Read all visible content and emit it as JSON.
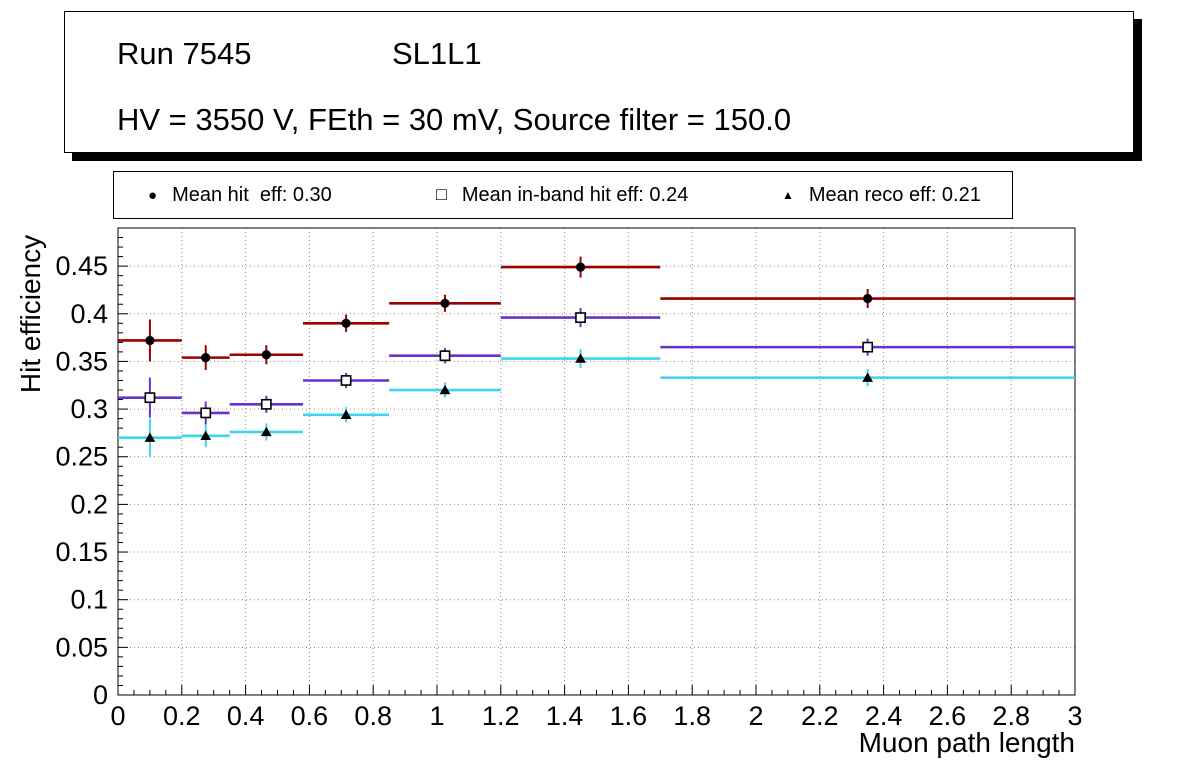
{
  "title_pave": {
    "run": "Run 7545",
    "board": "SL1L1",
    "conditions": "HV = 3550 V, FEth = 30 mV, Source filter = 150.0"
  },
  "legend": {
    "items": [
      {
        "marker": "filled-circle",
        "glyph": "●",
        "label": "Mean hit  eff: 0.30"
      },
      {
        "marker": "open-square",
        "glyph": "□",
        "label": "Mean in-band hit eff: 0.24"
      },
      {
        "marker": "filled-triangle",
        "glyph": "▲",
        "label": "Mean reco eff: 0.21"
      }
    ]
  },
  "chart_data": {
    "type": "scatter",
    "title": "",
    "xlabel": "Muon path length",
    "ylabel": "Hit efficiency",
    "xlim": [
      0,
      3
    ],
    "ylim": [
      0,
      0.49
    ],
    "grid": true,
    "grid_style": "dotted",
    "x_ticks": [
      0,
      0.2,
      0.4,
      0.6,
      0.8,
      1,
      1.2,
      1.4,
      1.6,
      1.8,
      2,
      2.2,
      2.4,
      2.6,
      2.8,
      3
    ],
    "x_tick_labels": [
      "0",
      "0.2",
      "0.4",
      "0.6",
      "0.8",
      "1",
      "1.2",
      "1.4",
      "1.6",
      "1.8",
      "2",
      "2.2",
      "2.4",
      "2.6",
      "2.8",
      "3"
    ],
    "y_ticks": [
      0,
      0.05,
      0.1,
      0.15,
      0.2,
      0.25,
      0.3,
      0.35,
      0.4,
      0.45
    ],
    "y_tick_labels": [
      "0",
      "0.05",
      "0.1",
      "0.15",
      "0.2",
      "0.25",
      "0.3",
      "0.35",
      "0.4",
      "0.45"
    ],
    "bin_edges": [
      0,
      0.2,
      0.35,
      0.58,
      0.85,
      1.2,
      1.7,
      3.0
    ],
    "series": [
      {
        "name": "Mean hit eff",
        "mean": 0.3,
        "color": "#990000",
        "marker": "circle",
        "marker_color": "#000000",
        "x": [
          0.1,
          0.275,
          0.465,
          0.715,
          1.025,
          1.45,
          2.35
        ],
        "y": [
          0.372,
          0.354,
          0.357,
          0.39,
          0.411,
          0.449,
          0.416
        ],
        "yerr": [
          0.022,
          0.013,
          0.01,
          0.009,
          0.009,
          0.011,
          0.01
        ]
      },
      {
        "name": "Mean in-band hit eff",
        "mean": 0.24,
        "color": "#6633cc",
        "marker": "square",
        "marker_color": "#000000",
        "x": [
          0.1,
          0.275,
          0.465,
          0.715,
          1.025,
          1.45,
          2.35
        ],
        "y": [
          0.312,
          0.296,
          0.305,
          0.33,
          0.356,
          0.396,
          0.365
        ],
        "yerr": [
          0.021,
          0.012,
          0.009,
          0.008,
          0.008,
          0.01,
          0.009
        ]
      },
      {
        "name": "Mean reco eff",
        "mean": 0.21,
        "color": "#3fd4ee",
        "marker": "triangle",
        "marker_color": "#000000",
        "x": [
          0.1,
          0.275,
          0.465,
          0.715,
          1.025,
          1.45,
          2.35
        ],
        "y": [
          0.27,
          0.272,
          0.276,
          0.294,
          0.32,
          0.353,
          0.333
        ],
        "yerr": [
          0.02,
          0.012,
          0.009,
          0.008,
          0.008,
          0.01,
          0.009
        ]
      }
    ]
  }
}
